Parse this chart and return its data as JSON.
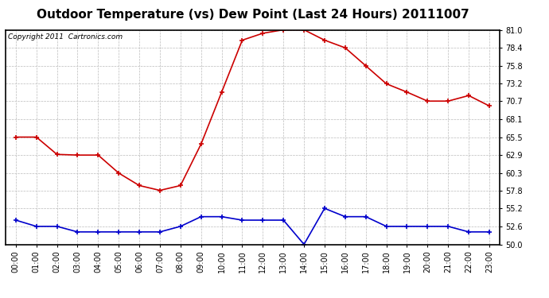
{
  "title": "Outdoor Temperature (vs) Dew Point (Last 24 Hours) 20111007",
  "copyright_text": "Copyright 2011  Cartronics.com",
  "hours": [
    "00:00",
    "01:00",
    "02:00",
    "03:00",
    "04:00",
    "05:00",
    "06:00",
    "07:00",
    "08:00",
    "09:00",
    "10:00",
    "11:00",
    "12:00",
    "13:00",
    "14:00",
    "15:00",
    "16:00",
    "17:00",
    "18:00",
    "19:00",
    "20:00",
    "21:00",
    "22:00",
    "23:00"
  ],
  "temp_red": [
    65.5,
    65.5,
    63.0,
    62.9,
    62.9,
    60.3,
    58.5,
    57.8,
    58.5,
    64.5,
    72.0,
    79.5,
    80.5,
    81.0,
    81.0,
    79.5,
    78.4,
    75.8,
    73.2,
    72.0,
    70.7,
    70.7,
    71.5,
    70.0
  ],
  "dew_blue": [
    53.5,
    52.6,
    52.6,
    51.8,
    51.8,
    51.8,
    51.8,
    51.8,
    52.6,
    54.0,
    54.0,
    53.5,
    53.5,
    53.5,
    50.0,
    55.2,
    54.0,
    54.0,
    52.6,
    52.6,
    52.6,
    52.6,
    51.8,
    51.8
  ],
  "ylim": [
    50.0,
    81.0
  ],
  "yticks": [
    50.0,
    52.6,
    55.2,
    57.8,
    60.3,
    62.9,
    65.5,
    68.1,
    70.7,
    73.2,
    75.8,
    78.4,
    81.0
  ],
  "temp_color": "#cc0000",
  "dew_color": "#0000cc",
  "bg_color": "#ffffff",
  "plot_bg_color": "#ffffff",
  "grid_color": "#bbbbbb",
  "title_fontsize": 11,
  "copyright_fontsize": 6.5,
  "tick_fontsize": 7,
  "marker_size": 4,
  "line_width": 1.2
}
